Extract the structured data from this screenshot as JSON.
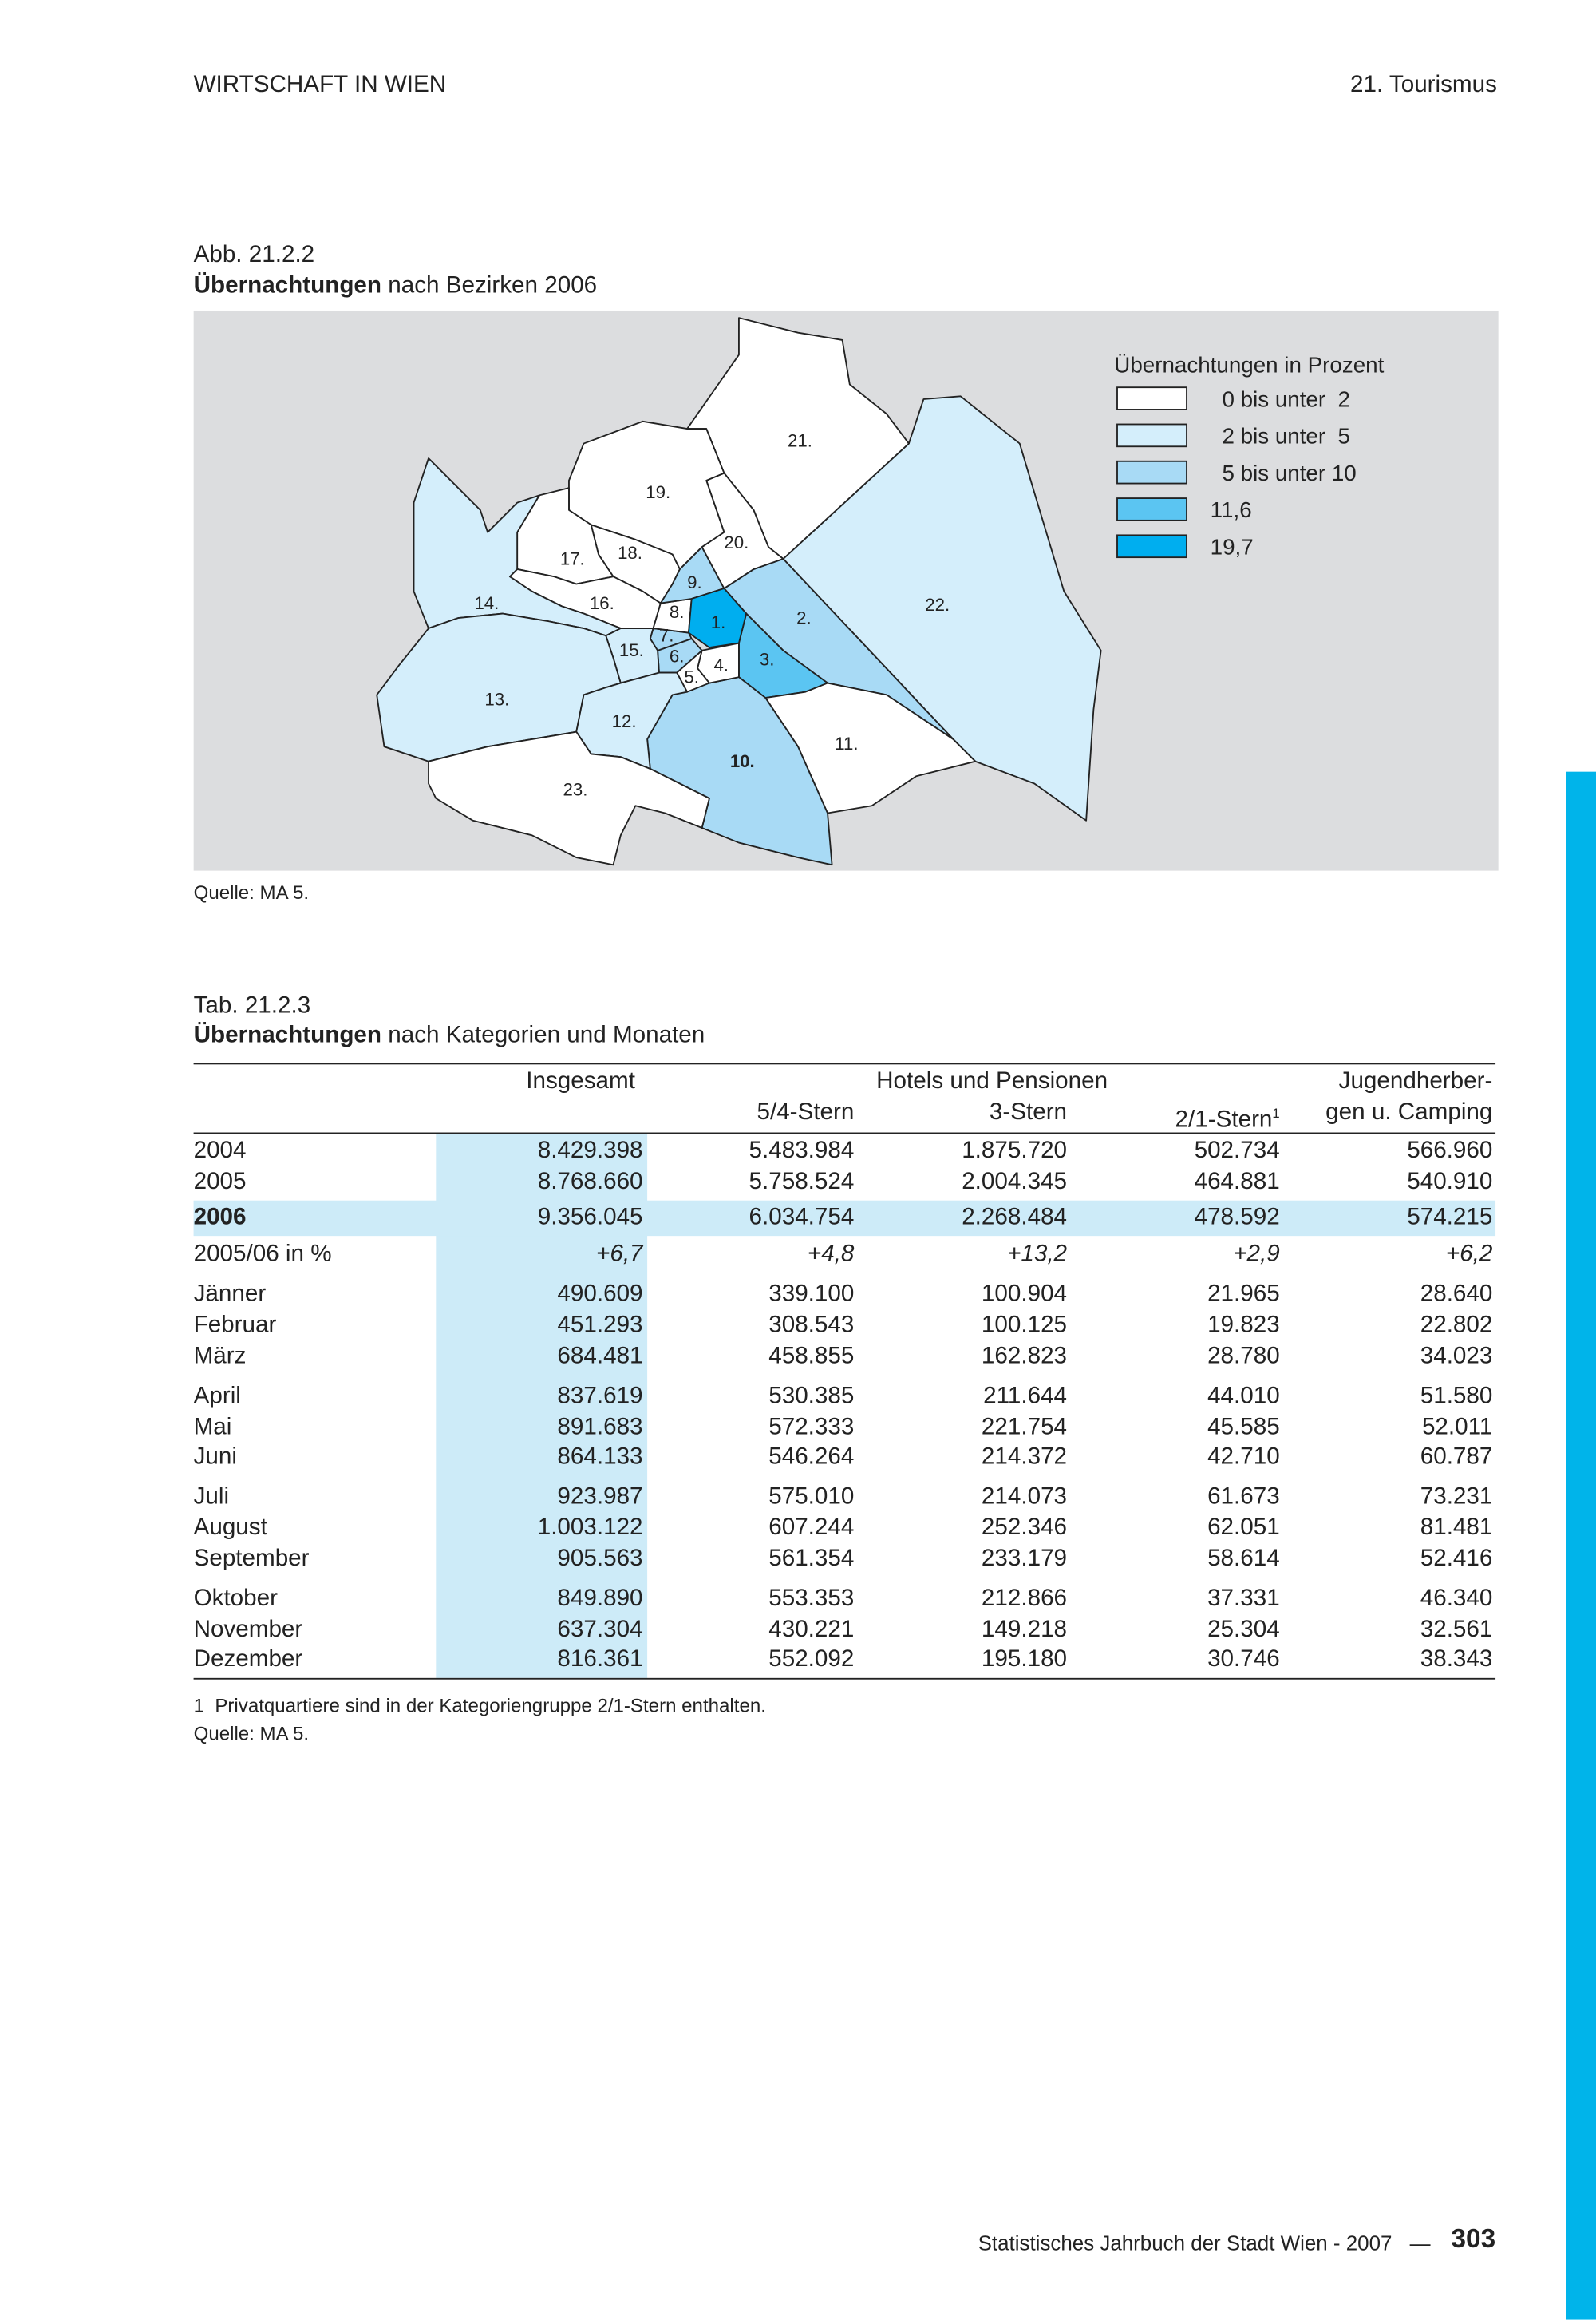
{
  "header": {
    "left": "WIRTSCHAFT IN WIEN",
    "right": "21. Tourismus"
  },
  "figure": {
    "label": "Abb. 21.2.2",
    "title_bold": "Übernachtungen",
    "title_rest": "nach Bezirken 2006",
    "districts": [
      "1.",
      "2.",
      "3.",
      "4.",
      "5.",
      "6.",
      "7.",
      "8.",
      "9.",
      "10.",
      "11.",
      "12.",
      "13.",
      "14.",
      "15.",
      "16.",
      "17.",
      "18.",
      "19.",
      "20.",
      "21.",
      "22.",
      "23."
    ],
    "legend": {
      "title": "Übernachtungen in Prozent",
      "items": [
        "0 bis unter  2",
        "2 bis unter  5",
        "5 bis unter 10",
        "11,6",
        "19,7"
      ]
    },
    "source": "Quelle: MA 5."
  },
  "table": {
    "label": "Tab. 21.2.3",
    "title_bold": "Übernachtungen",
    "title_rest": "nach Kategorien und Monaten",
    "header": {
      "insgesamt": "Insgesamt",
      "group": "Hotels und Pensionen",
      "jugend_1": "Jugendherber-",
      "jugend_2": "gen u. Camping",
      "cols": [
        "5/4-Stern",
        "3-Stern",
        "2/1-Stern"
      ],
      "footnote_mark": "1"
    },
    "rows": [
      [
        "2004",
        "8.429.398",
        "5.483.984",
        "1.875.720",
        "502.734",
        "566.960"
      ],
      [
        "2005",
        "8.768.660",
        "5.758.524",
        "2.004.345",
        "464.881",
        "540.910"
      ],
      [
        "2006",
        "9.356.045",
        "6.034.754",
        "2.268.484",
        "478.592",
        "574.215"
      ],
      [
        "2005/06 in %",
        "+6,7",
        "+4,8",
        "+13,2",
        "+2,9",
        "+6,2"
      ],
      [
        "Jänner",
        "490.609",
        "339.100",
        "100.904",
        "21.965",
        "28.640"
      ],
      [
        "Februar",
        "451.293",
        "308.543",
        "100.125",
        "19.823",
        "22.802"
      ],
      [
        "März",
        "684.481",
        "458.855",
        "162.823",
        "28.780",
        "34.023"
      ],
      [
        "April",
        "837.619",
        "530.385",
        "211.644",
        "44.010",
        "51.580"
      ],
      [
        "Mai",
        "891.683",
        "572.333",
        "221.754",
        "45.585",
        "52.011"
      ],
      [
        "Juni",
        "864.133",
        "546.264",
        "214.372",
        "42.710",
        "60.787"
      ],
      [
        "Juli",
        "923.987",
        "575.010",
        "214.073",
        "61.673",
        "73.231"
      ],
      [
        "August",
        "1.003.122",
        "607.244",
        "252.346",
        "62.051",
        "81.481"
      ],
      [
        "September",
        "905.563",
        "561.354",
        "233.179",
        "58.614",
        "52.416"
      ],
      [
        "Oktober",
        "849.890",
        "553.353",
        "212.866",
        "37.331",
        "46.340"
      ],
      [
        "November",
        "637.304",
        "430.221",
        "149.218",
        "25.304",
        "32.561"
      ],
      [
        "Dezember",
        "816.361",
        "552.092",
        "195.180",
        "30.746",
        "38.343"
      ]
    ],
    "footnote": "1  Privatquartiere sind in der Kategoriengruppe 2/1-Stern enthalten.",
    "source": "Quelle: MA 5."
  },
  "footer": {
    "text": "Statistisches Jahrbuch der Stadt Wien - 2007",
    "dash": "—",
    "page": "303"
  }
}
